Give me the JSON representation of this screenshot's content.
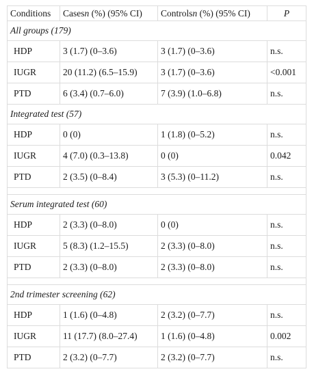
{
  "headers": {
    "conditions": "Conditions",
    "cases_main": "Cases",
    "cases_italic": "n",
    "cases_rest": " (%) (95% CI)",
    "controls_main": "Controls",
    "controls_italic": "n",
    "controls_rest": " (%) (95% CI)",
    "p": "P"
  },
  "groups": [
    {
      "title": "All groups (179)",
      "rows": [
        {
          "condition": "HDP",
          "cases": "3 (1.7) (0–3.6)",
          "controls": "3 (1.7) (0–3.6)",
          "p": "n.s."
        },
        {
          "condition": "IUGR",
          "cases": "20 (11.2) (6.5–15.9)",
          "controls": "3 (1.7) (0–3.6)",
          "p": "<0.001"
        },
        {
          "condition": "PTD",
          "cases": "6 (3.4) (0.7–6.0)",
          "controls": "7 (3.9) (1.0–6.8)",
          "p": "n.s."
        }
      ]
    },
    {
      "title": "Integrated test (57)",
      "rows": [
        {
          "condition": "HDP",
          "cases": "0 (0)",
          "controls": "1 (1.8) (0–5.2)",
          "p": "n.s."
        },
        {
          "condition": "IUGR",
          "cases": "4 (7.0) (0.3–13.8)",
          "controls": "0 (0)",
          "p": "0.042"
        },
        {
          "condition": "PTD",
          "cases": "2 (3.5) (0–8.4)",
          "controls": "3 (5.3) (0–11.2)",
          "p": "n.s."
        }
      ]
    },
    {
      "title": "Serum integrated test (60)",
      "rows": [
        {
          "condition": "HDP",
          "cases": "2 (3.3) (0–8.0)",
          "controls": "0 (0)",
          "p": "n.s."
        },
        {
          "condition": "IUGR",
          "cases": "5 (8.3) (1.2–15.5)",
          "controls": "2 (3.3) (0–8.0)",
          "p": "n.s."
        },
        {
          "condition": "PTD",
          "cases": "2 (3.3) (0–8.0)",
          "controls": "2 (3.3) (0–8.0)",
          "p": "n.s."
        }
      ]
    },
    {
      "title": "2nd trimester screening (62)",
      "rows": [
        {
          "condition": "HDP",
          "cases": "1 (1.6) (0–4.8)",
          "controls": "2 (3.2) (0–7.7)",
          "p": "n.s."
        },
        {
          "condition": "IUGR",
          "cases": "11 (17.7) (8.0–27.4)",
          "controls": "1 (1.6) (0–4.8)",
          "p": "0.002"
        },
        {
          "condition": "PTD",
          "cases": "2 (3.2) (0–7.7)",
          "controls": "2 (3.2) (0–7.7)",
          "p": "n.s."
        }
      ]
    }
  ]
}
